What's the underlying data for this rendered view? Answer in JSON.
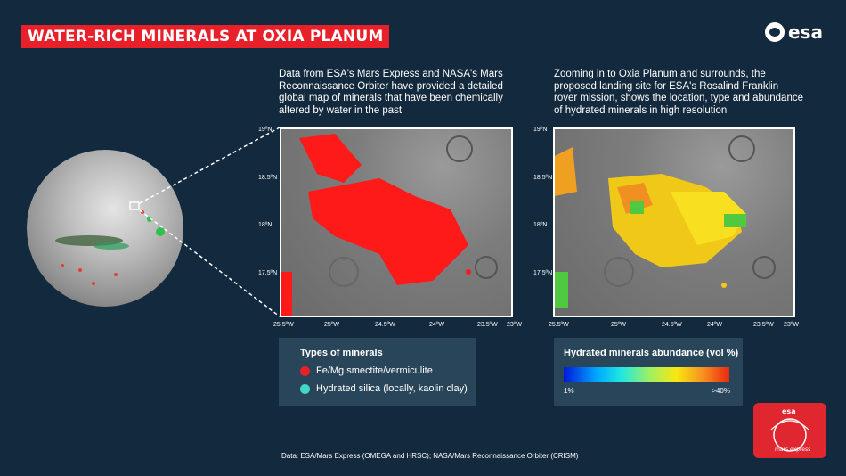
{
  "title": "WATER-RICH MINERALS AT OXIA PLANUM",
  "logo": {
    "text": "esa"
  },
  "descriptions": {
    "left": "Data from ESA's Mars Express and NASA's Mars Reconnaissance Orbiter have provided a detailed global map of minerals that have been chemically altered by water in the past",
    "right": "Zooming in to Oxia Planum and surrounds, the proposed landing site for ESA's Rosalind Franklin rover mission, shows the location, type and abundance of hydrated minerals in high resolution"
  },
  "map_axes": {
    "lat_labels": [
      "19ºN",
      "18.5ºN",
      "18ºN",
      "17.5ºN"
    ],
    "lon_labels": [
      "25.5ºW",
      "25ºW",
      "24.5ºW",
      "24ºW",
      "23.5ºW",
      "23ºW"
    ]
  },
  "legend_types": {
    "heading": "Types of minerals",
    "items": [
      {
        "label": "Fe/Mg smectite/vermiculite",
        "color": "#e8202a"
      },
      {
        "label": "Hydrated silica (locally, kaolin clay)",
        "color": "#40d8c8"
      }
    ]
  },
  "legend_abundance": {
    "heading": "Hydrated minerals abundance (vol %)",
    "min_label": "1%",
    "max_label": ">40%"
  },
  "footer": "Data: ESA/Mars Express (OMEGA and HRSC); NASA/Mars Reconnaissance Orbiter (CRISM)",
  "badge": {
    "logo_text": "esa",
    "mission_text": "mars express"
  },
  "colors": {
    "background": "#13293d",
    "accent": "#e8202a",
    "legend_bg": "#294559"
  }
}
